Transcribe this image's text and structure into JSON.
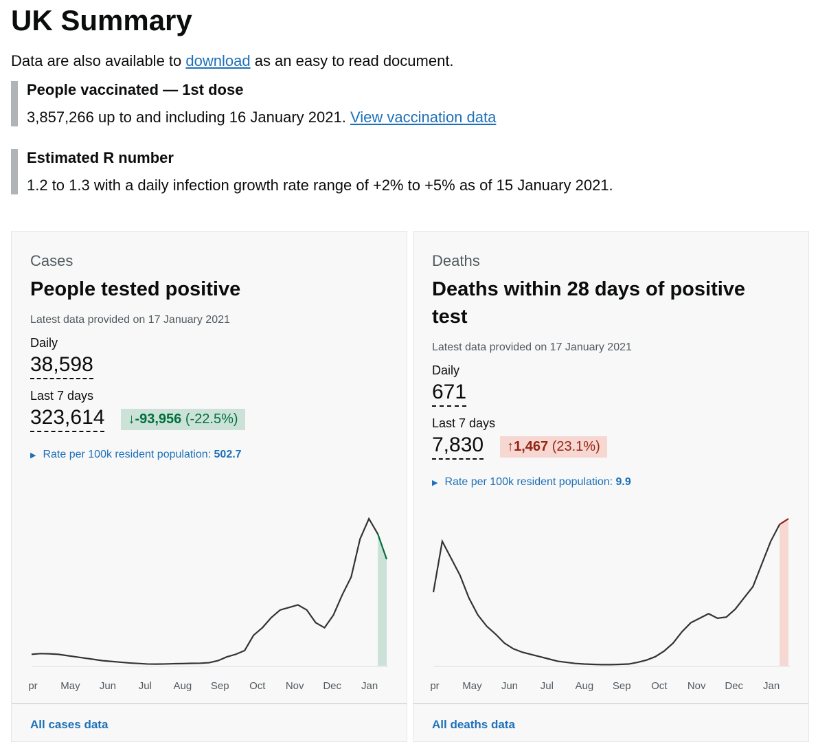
{
  "header": {
    "title": "UK Summary",
    "intro": {
      "before": "Data are also available to",
      "link": "download",
      "after": "as an easy to read document."
    }
  },
  "callouts": [
    {
      "title": "People vaccinated — 1st dose",
      "text": "3,857,266 up to and including 16 January 2021.",
      "link": "View vaccination data"
    },
    {
      "title": "Estimated R number",
      "text": "1.2 to 1.3 with a daily infection growth rate range of +2% to +5% as of 15 January 2021."
    }
  ],
  "cards": [
    {
      "category": "Cases",
      "title": "People tested positive",
      "updated": "Latest data provided on 17 January 2021",
      "daily_label": "Daily",
      "daily": "38,598",
      "week_label": "Last 7 days",
      "week": "323,614",
      "arrow": "↓",
      "change": "-93,956",
      "change_pct": "(-22.5%)",
      "rate_label": "Rate per 100k resident population:",
      "rate": "502.7",
      "link": "All cases data",
      "chart": {
        "type": "line",
        "color": "#333333",
        "highlight_color": "#00703c",
        "highlight_fill": "#cce2d8",
        "x_labels": [
          "pr",
          "May",
          "Jun",
          "Jul",
          "Aug",
          "Sep",
          "Oct",
          "Nov",
          "Dec",
          "Jan"
        ],
        "values": [
          4500,
          4800,
          4700,
          4500,
          4000,
          3500,
          3000,
          2500,
          2000,
          1700,
          1400,
          1100,
          900,
          700,
          650,
          700,
          800,
          850,
          950,
          1000,
          1200,
          2000,
          3500,
          4500,
          6000,
          12000,
          15000,
          19000,
          22000,
          23000,
          24000,
          22000,
          17000,
          15000,
          20000,
          28000,
          35000,
          50000,
          58000,
          52000,
          42000
        ]
      }
    },
    {
      "category": "Deaths",
      "title": "Deaths within 28 days of positive test",
      "updated": "Latest data provided on 17 January 2021",
      "daily_label": "Daily",
      "daily": "671",
      "week_label": "Last 7 days",
      "week": "7,830",
      "arrow": "↑",
      "change": "1,467",
      "change_pct": "(23.1%)",
      "rate_label": "Rate per 100k resident population:",
      "rate": "9.9",
      "link": "All deaths data",
      "chart": {
        "type": "line",
        "color": "#333333",
        "highlight_color": "#942514",
        "highlight_fill": "#f6d7d2",
        "x_labels": [
          "pr",
          "May",
          "Jun",
          "Jul",
          "Aug",
          "Sep",
          "Oct",
          "Nov",
          "Dec",
          "Jan"
        ],
        "values": [
          650,
          1100,
          950,
          800,
          600,
          450,
          350,
          280,
          200,
          150,
          120,
          100,
          80,
          60,
          40,
          30,
          20,
          15,
          12,
          10,
          10,
          12,
          15,
          30,
          50,
          80,
          130,
          200,
          300,
          380,
          420,
          460,
          420,
          430,
          500,
          600,
          700,
          900,
          1100,
          1250,
          1300
        ]
      }
    }
  ]
}
